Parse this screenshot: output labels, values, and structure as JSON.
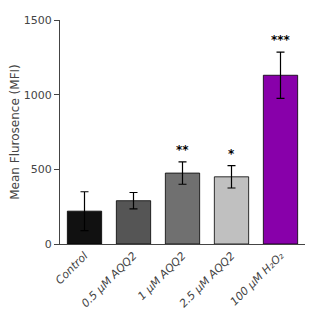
{
  "chart_data": {
    "type": "bar",
    "categories": [
      "Control",
      "0.5 μM AQQ2",
      "1 μM AQQ2",
      "2.5 μM AQQ2",
      "100 μM H₂O₂"
    ],
    "values": [
      220,
      290,
      475,
      450,
      1130
    ],
    "errors": [
      130,
      55,
      75,
      75,
      155
    ],
    "colors": [
      "#111111",
      "#555555",
      "#707070",
      "#c0c0c0",
      "#8800aa"
    ],
    "annotations": [
      {
        "category": "1 μM AQQ2",
        "text": "**"
      },
      {
        "category": "2.5 μM AQQ2",
        "text": "*"
      },
      {
        "category": "100 μM H₂O₂",
        "text": "***"
      }
    ],
    "ylabel": "Mean Flurosence (MFI)",
    "ylim": [
      0,
      1500
    ],
    "yticks": [
      0,
      500,
      1000,
      1500
    ],
    "grid": false
  }
}
